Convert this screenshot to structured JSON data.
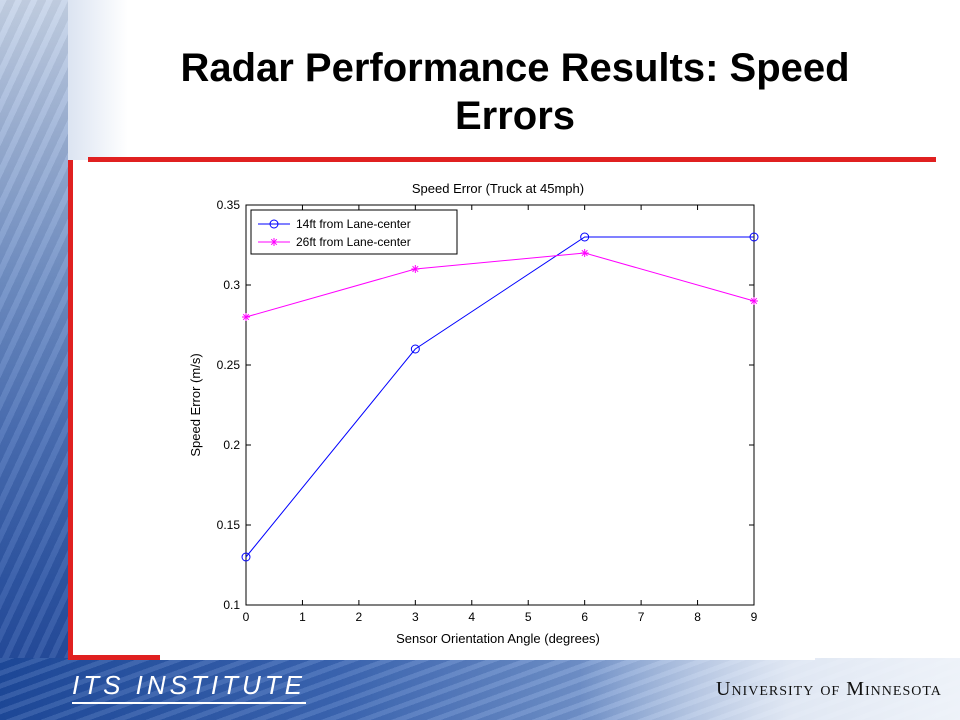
{
  "slide": {
    "title": "Radar Performance Results: Speed Errors",
    "logo_left": "ITS INSTITUTE",
    "logo_right": "University of Minnesota"
  },
  "colors": {
    "accent_red": "#e02020",
    "series_blue": "#0000ff",
    "series_magenta": "#ff00ff"
  },
  "chart_data": {
    "type": "line",
    "title": "Speed Error (Truck at 45mph)",
    "xlabel": "Sensor Orientation Angle (degrees)",
    "ylabel": "Speed Error (m/s)",
    "xlim": [
      0,
      9
    ],
    "ylim": [
      0.1,
      0.35
    ],
    "xticks": [
      0,
      1,
      2,
      3,
      4,
      5,
      6,
      7,
      8,
      9
    ],
    "yticks": [
      0.1,
      0.15,
      0.2,
      0.25,
      0.3,
      0.35
    ],
    "ytick_labels": [
      "0.1",
      "0.15",
      "0.2",
      "0.25",
      "0.3",
      "0.35"
    ],
    "grid": false,
    "legend_position": "top-left",
    "series": [
      {
        "name": "14ft from Lane-center",
        "marker": "circle",
        "color": "#0000ff",
        "x": [
          0,
          3,
          6,
          9
        ],
        "y": [
          0.13,
          0.26,
          0.33,
          0.33
        ]
      },
      {
        "name": "26ft from Lane-center",
        "marker": "star",
        "color": "#ff00ff",
        "x": [
          0,
          3,
          6,
          9
        ],
        "y": [
          0.28,
          0.31,
          0.32,
          0.29
        ]
      }
    ]
  }
}
